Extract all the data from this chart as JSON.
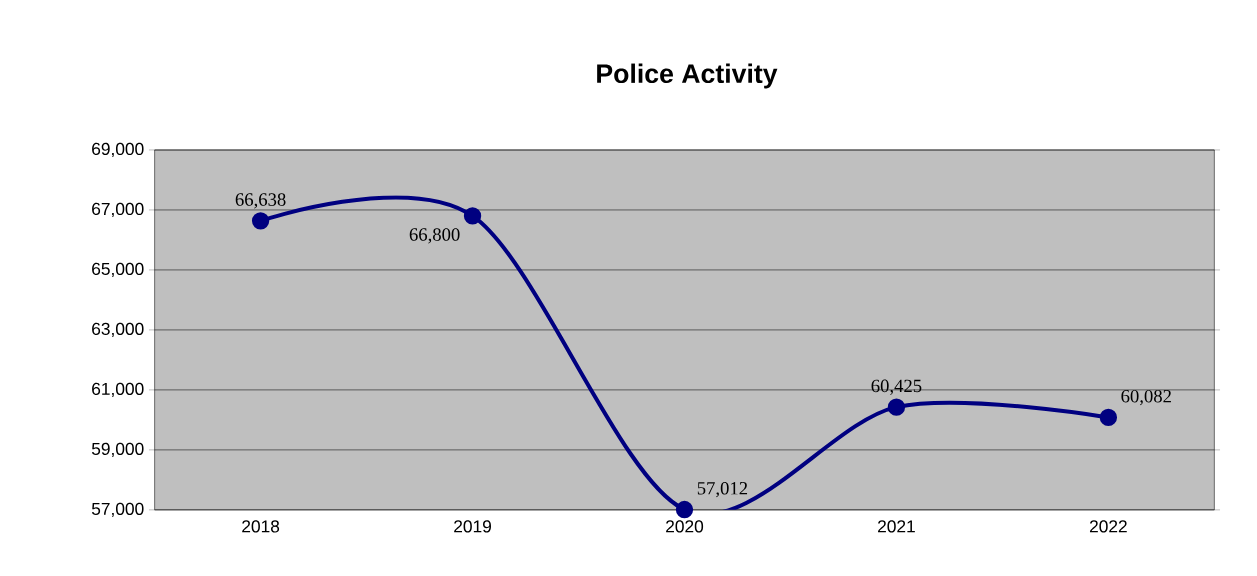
{
  "chart_data": {
    "type": "line",
    "title": "Police Activity",
    "categories": [
      "2018",
      "2019",
      "2020",
      "2021",
      "2022"
    ],
    "values": [
      66638,
      66800,
      57012,
      60425,
      60082
    ],
    "value_labels": [
      "66,638",
      "66,800",
      "57,012",
      "60,425",
      "60,082"
    ],
    "color": "#000080",
    "marker": "circle",
    "line_style": "solid",
    "grid": "y",
    "ylim": [
      57000,
      69000
    ],
    "yticks": [
      {
        "value": 57000,
        "label": "57,000"
      },
      {
        "value": 59000,
        "label": "59,000"
      },
      {
        "value": 61000,
        "label": "61,000"
      },
      {
        "value": 63000,
        "label": "63,000"
      },
      {
        "value": 65000,
        "label": "65,000"
      },
      {
        "value": 67000,
        "label": "67,000"
      },
      {
        "value": 69000,
        "label": "69,000"
      }
    ]
  }
}
